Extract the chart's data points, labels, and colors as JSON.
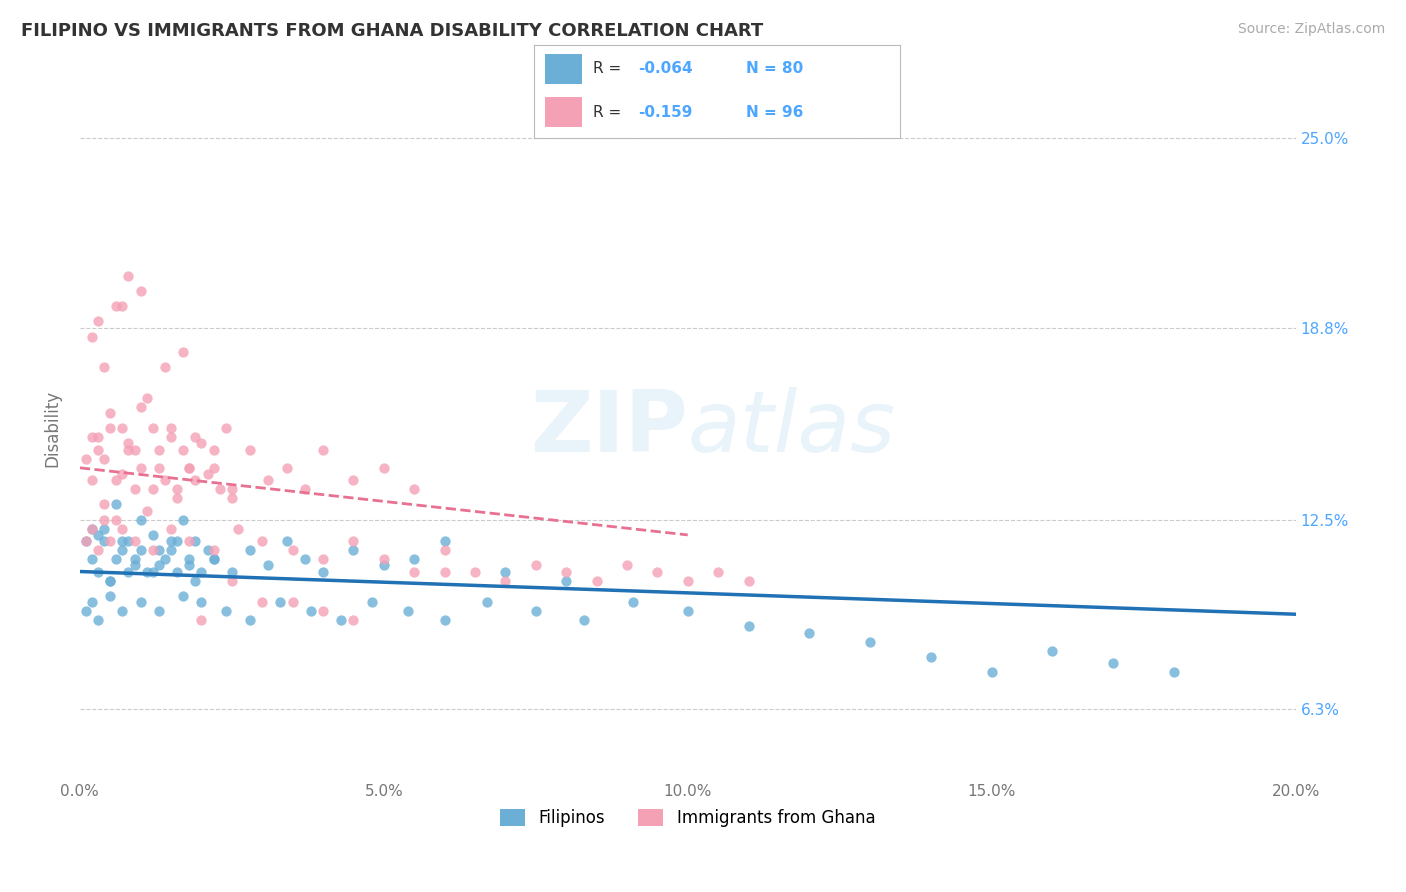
{
  "title": "FILIPINO VS IMMIGRANTS FROM GHANA DISABILITY CORRELATION CHART",
  "source": "Source: ZipAtlas.com",
  "ylabel": "Disability",
  "xlim": [
    0.0,
    0.2
  ],
  "ylim": [
    0.04,
    0.27
  ],
  "yticks": [
    0.063,
    0.125,
    0.188,
    0.25
  ],
  "ytick_labels": [
    "6.3%",
    "12.5%",
    "18.8%",
    "25.0%"
  ],
  "xticks": [
    0.0,
    0.05,
    0.1,
    0.15,
    0.2
  ],
  "xtick_labels": [
    "0.0%",
    "5.0%",
    "10.0%",
    "15.0%",
    "20.0%"
  ],
  "filipino_R": -0.064,
  "filipino_N": 80,
  "ghana_R": -0.159,
  "ghana_N": 96,
  "filipino_color": "#6baed6",
  "ghana_color": "#f4a0b5",
  "filipino_line_color": "#2171b5",
  "ghana_line_color": "#e87090",
  "legend_label_1": "Filipinos",
  "legend_label_2": "Immigrants from Ghana",
  "filipino_x": [
    0.001,
    0.002,
    0.003,
    0.004,
    0.005,
    0.006,
    0.007,
    0.008,
    0.009,
    0.01,
    0.011,
    0.012,
    0.013,
    0.014,
    0.015,
    0.016,
    0.017,
    0.018,
    0.019,
    0.02,
    0.021,
    0.022,
    0.003,
    0.005,
    0.007,
    0.009,
    0.012,
    0.015,
    0.018,
    0.002,
    0.004,
    0.006,
    0.008,
    0.01,
    0.013,
    0.016,
    0.019,
    0.022,
    0.025,
    0.028,
    0.031,
    0.034,
    0.037,
    0.04,
    0.045,
    0.05,
    0.055,
    0.06,
    0.07,
    0.08,
    0.001,
    0.002,
    0.003,
    0.005,
    0.007,
    0.01,
    0.013,
    0.017,
    0.02,
    0.024,
    0.028,
    0.033,
    0.038,
    0.043,
    0.048,
    0.054,
    0.06,
    0.067,
    0.075,
    0.083,
    0.091,
    0.1,
    0.11,
    0.12,
    0.13,
    0.14,
    0.15,
    0.16,
    0.17,
    0.18
  ],
  "filipino_y": [
    0.118,
    0.112,
    0.108,
    0.122,
    0.105,
    0.13,
    0.115,
    0.118,
    0.11,
    0.125,
    0.108,
    0.12,
    0.115,
    0.112,
    0.118,
    0.108,
    0.125,
    0.112,
    0.118,
    0.108,
    0.115,
    0.112,
    0.12,
    0.105,
    0.118,
    0.112,
    0.108,
    0.115,
    0.11,
    0.122,
    0.118,
    0.112,
    0.108,
    0.115,
    0.11,
    0.118,
    0.105,
    0.112,
    0.108,
    0.115,
    0.11,
    0.118,
    0.112,
    0.108,
    0.115,
    0.11,
    0.112,
    0.118,
    0.108,
    0.105,
    0.095,
    0.098,
    0.092,
    0.1,
    0.095,
    0.098,
    0.095,
    0.1,
    0.098,
    0.095,
    0.092,
    0.098,
    0.095,
    0.092,
    0.098,
    0.095,
    0.092,
    0.098,
    0.095,
    0.092,
    0.098,
    0.095,
    0.09,
    0.088,
    0.085,
    0.08,
    0.075,
    0.082,
    0.078,
    0.075
  ],
  "ghana_x": [
    0.001,
    0.002,
    0.003,
    0.004,
    0.005,
    0.006,
    0.007,
    0.008,
    0.009,
    0.01,
    0.011,
    0.012,
    0.013,
    0.014,
    0.015,
    0.016,
    0.017,
    0.018,
    0.019,
    0.02,
    0.021,
    0.022,
    0.023,
    0.024,
    0.025,
    0.003,
    0.005,
    0.007,
    0.009,
    0.012,
    0.015,
    0.018,
    0.002,
    0.004,
    0.006,
    0.008,
    0.01,
    0.013,
    0.016,
    0.019,
    0.022,
    0.025,
    0.028,
    0.031,
    0.034,
    0.037,
    0.04,
    0.045,
    0.05,
    0.055,
    0.001,
    0.002,
    0.003,
    0.004,
    0.005,
    0.007,
    0.009,
    0.012,
    0.015,
    0.018,
    0.022,
    0.026,
    0.03,
    0.035,
    0.04,
    0.045,
    0.05,
    0.055,
    0.06,
    0.065,
    0.07,
    0.075,
    0.08,
    0.085,
    0.09,
    0.095,
    0.1,
    0.105,
    0.11,
    0.06,
    0.04,
    0.03,
    0.02,
    0.025,
    0.035,
    0.045,
    0.01,
    0.008,
    0.006,
    0.003,
    0.002,
    0.004,
    0.007,
    0.011,
    0.014,
    0.017
  ],
  "ghana_y": [
    0.145,
    0.138,
    0.152,
    0.13,
    0.16,
    0.125,
    0.155,
    0.148,
    0.135,
    0.162,
    0.128,
    0.155,
    0.142,
    0.138,
    0.152,
    0.132,
    0.148,
    0.142,
    0.138,
    0.15,
    0.14,
    0.148,
    0.135,
    0.155,
    0.132,
    0.148,
    0.155,
    0.14,
    0.148,
    0.135,
    0.155,
    0.142,
    0.152,
    0.145,
    0.138,
    0.15,
    0.142,
    0.148,
    0.135,
    0.152,
    0.142,
    0.135,
    0.148,
    0.138,
    0.142,
    0.135,
    0.148,
    0.138,
    0.142,
    0.135,
    0.118,
    0.122,
    0.115,
    0.125,
    0.118,
    0.122,
    0.118,
    0.115,
    0.122,
    0.118,
    0.115,
    0.122,
    0.118,
    0.115,
    0.112,
    0.118,
    0.112,
    0.108,
    0.115,
    0.108,
    0.105,
    0.11,
    0.108,
    0.105,
    0.11,
    0.108,
    0.105,
    0.108,
    0.105,
    0.108,
    0.095,
    0.098,
    0.092,
    0.105,
    0.098,
    0.092,
    0.2,
    0.205,
    0.195,
    0.19,
    0.185,
    0.175,
    0.195,
    0.165,
    0.175,
    0.18
  ],
  "fil_trend_x": [
    0.0,
    0.2
  ],
  "fil_trend_y": [
    0.108,
    0.094
  ],
  "gha_trend_x": [
    0.0,
    0.1
  ],
  "gha_trend_y": [
    0.142,
    0.12
  ]
}
